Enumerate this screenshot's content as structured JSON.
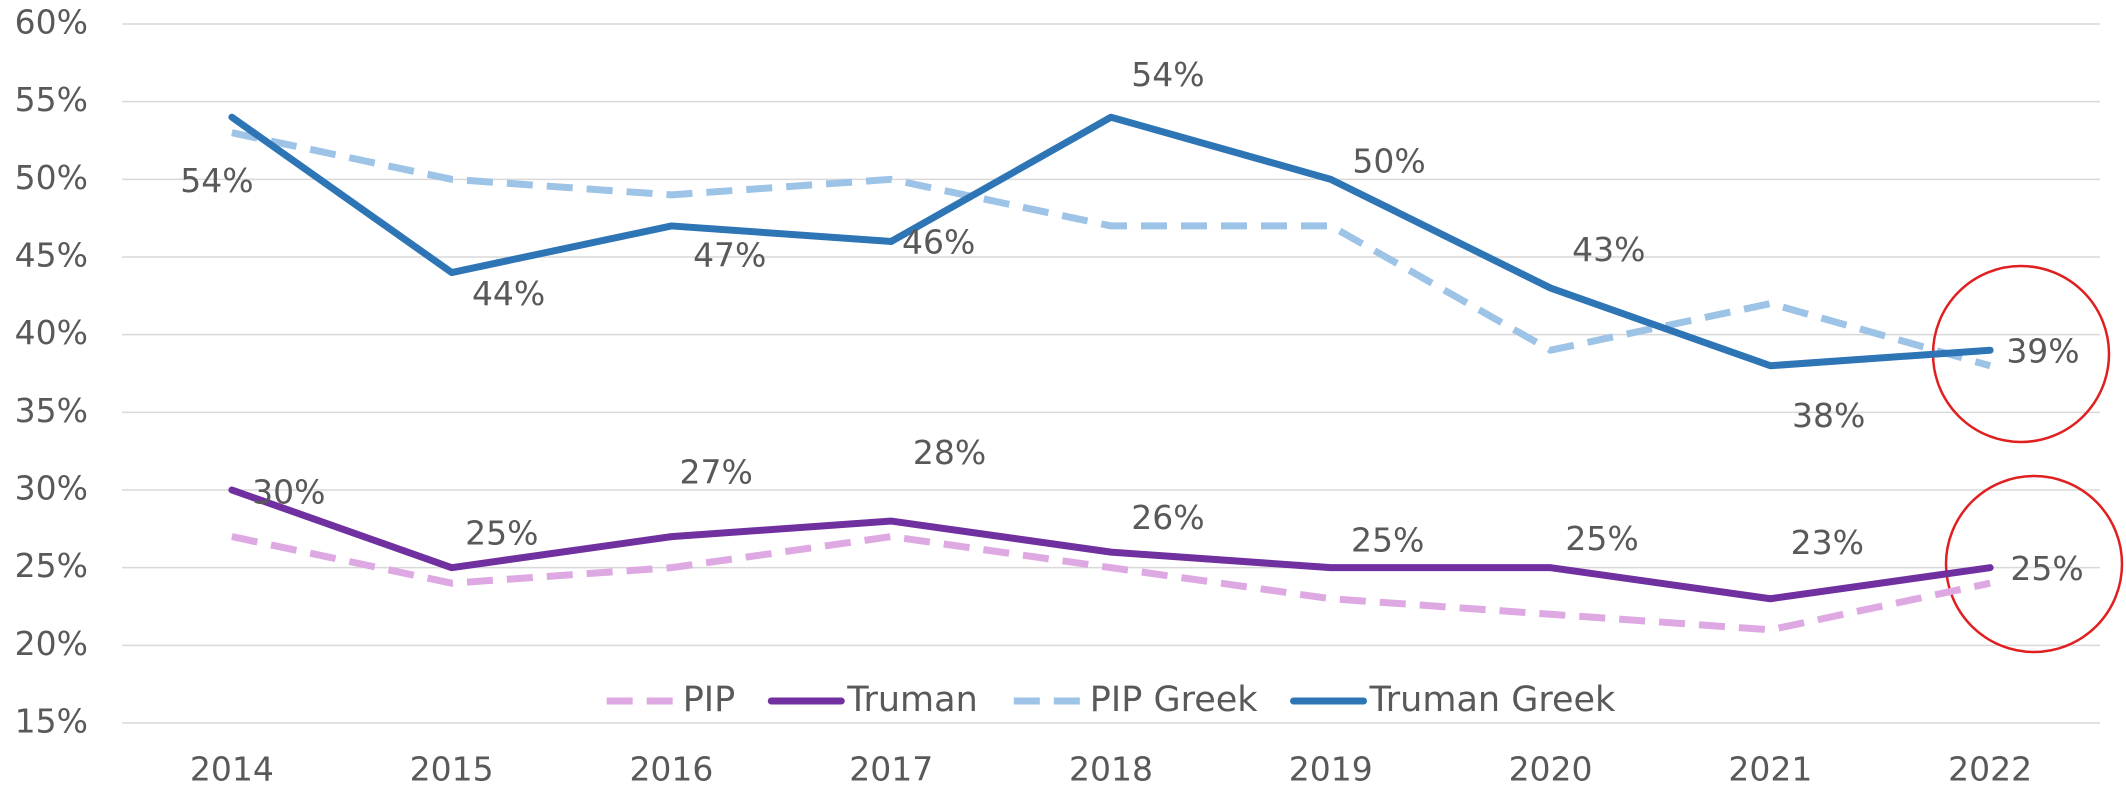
{
  "chart_data": {
    "type": "line",
    "categories": [
      "2014",
      "2015",
      "2016",
      "2017",
      "2018",
      "2019",
      "2020",
      "2021",
      "2022"
    ],
    "series": [
      {
        "name": "PIP",
        "color": "#dea8e3",
        "dashed": true,
        "values": [
          27,
          24,
          25,
          27,
          25,
          23,
          22,
          21,
          24
        ]
      },
      {
        "name": "Truman",
        "color": "#7030a0",
        "dashed": false,
        "values": [
          30,
          25,
          27,
          28,
          26,
          25,
          25,
          23,
          25
        ],
        "value_labels": [
          "30%",
          "25%",
          "27%",
          "28%",
          "26%",
          "25%",
          "25%",
          "23%",
          "25%"
        ]
      },
      {
        "name": "PIP Greek",
        "color": "#9dc3e6",
        "dashed": true,
        "values": [
          53,
          50,
          49,
          50,
          47,
          47,
          39,
          42,
          38
        ]
      },
      {
        "name": "Truman Greek",
        "color": "#2e75b6",
        "dashed": false,
        "values": [
          54,
          44,
          47,
          46,
          54,
          50,
          43,
          38,
          39
        ],
        "value_labels": [
          "54%",
          "44%",
          "47%",
          "46%",
          "54%",
          "50%",
          "43%",
          "38%",
          "39%"
        ]
      }
    ],
    "ylim": [
      15,
      60
    ],
    "yticks": [
      {
        "value": 15,
        "label": "15%"
      },
      {
        "value": 20,
        "label": "20%"
      },
      {
        "value": 25,
        "label": "25%"
      },
      {
        "value": 30,
        "label": "30%"
      },
      {
        "value": 35,
        "label": "35%"
      },
      {
        "value": 40,
        "label": "40%"
      },
      {
        "value": 45,
        "label": "45%"
      },
      {
        "value": 50,
        "label": "50%"
      },
      {
        "value": 55,
        "label": "55%"
      },
      {
        "value": 60,
        "label": "60%"
      }
    ],
    "grid": true,
    "legend": "bottom"
  }
}
